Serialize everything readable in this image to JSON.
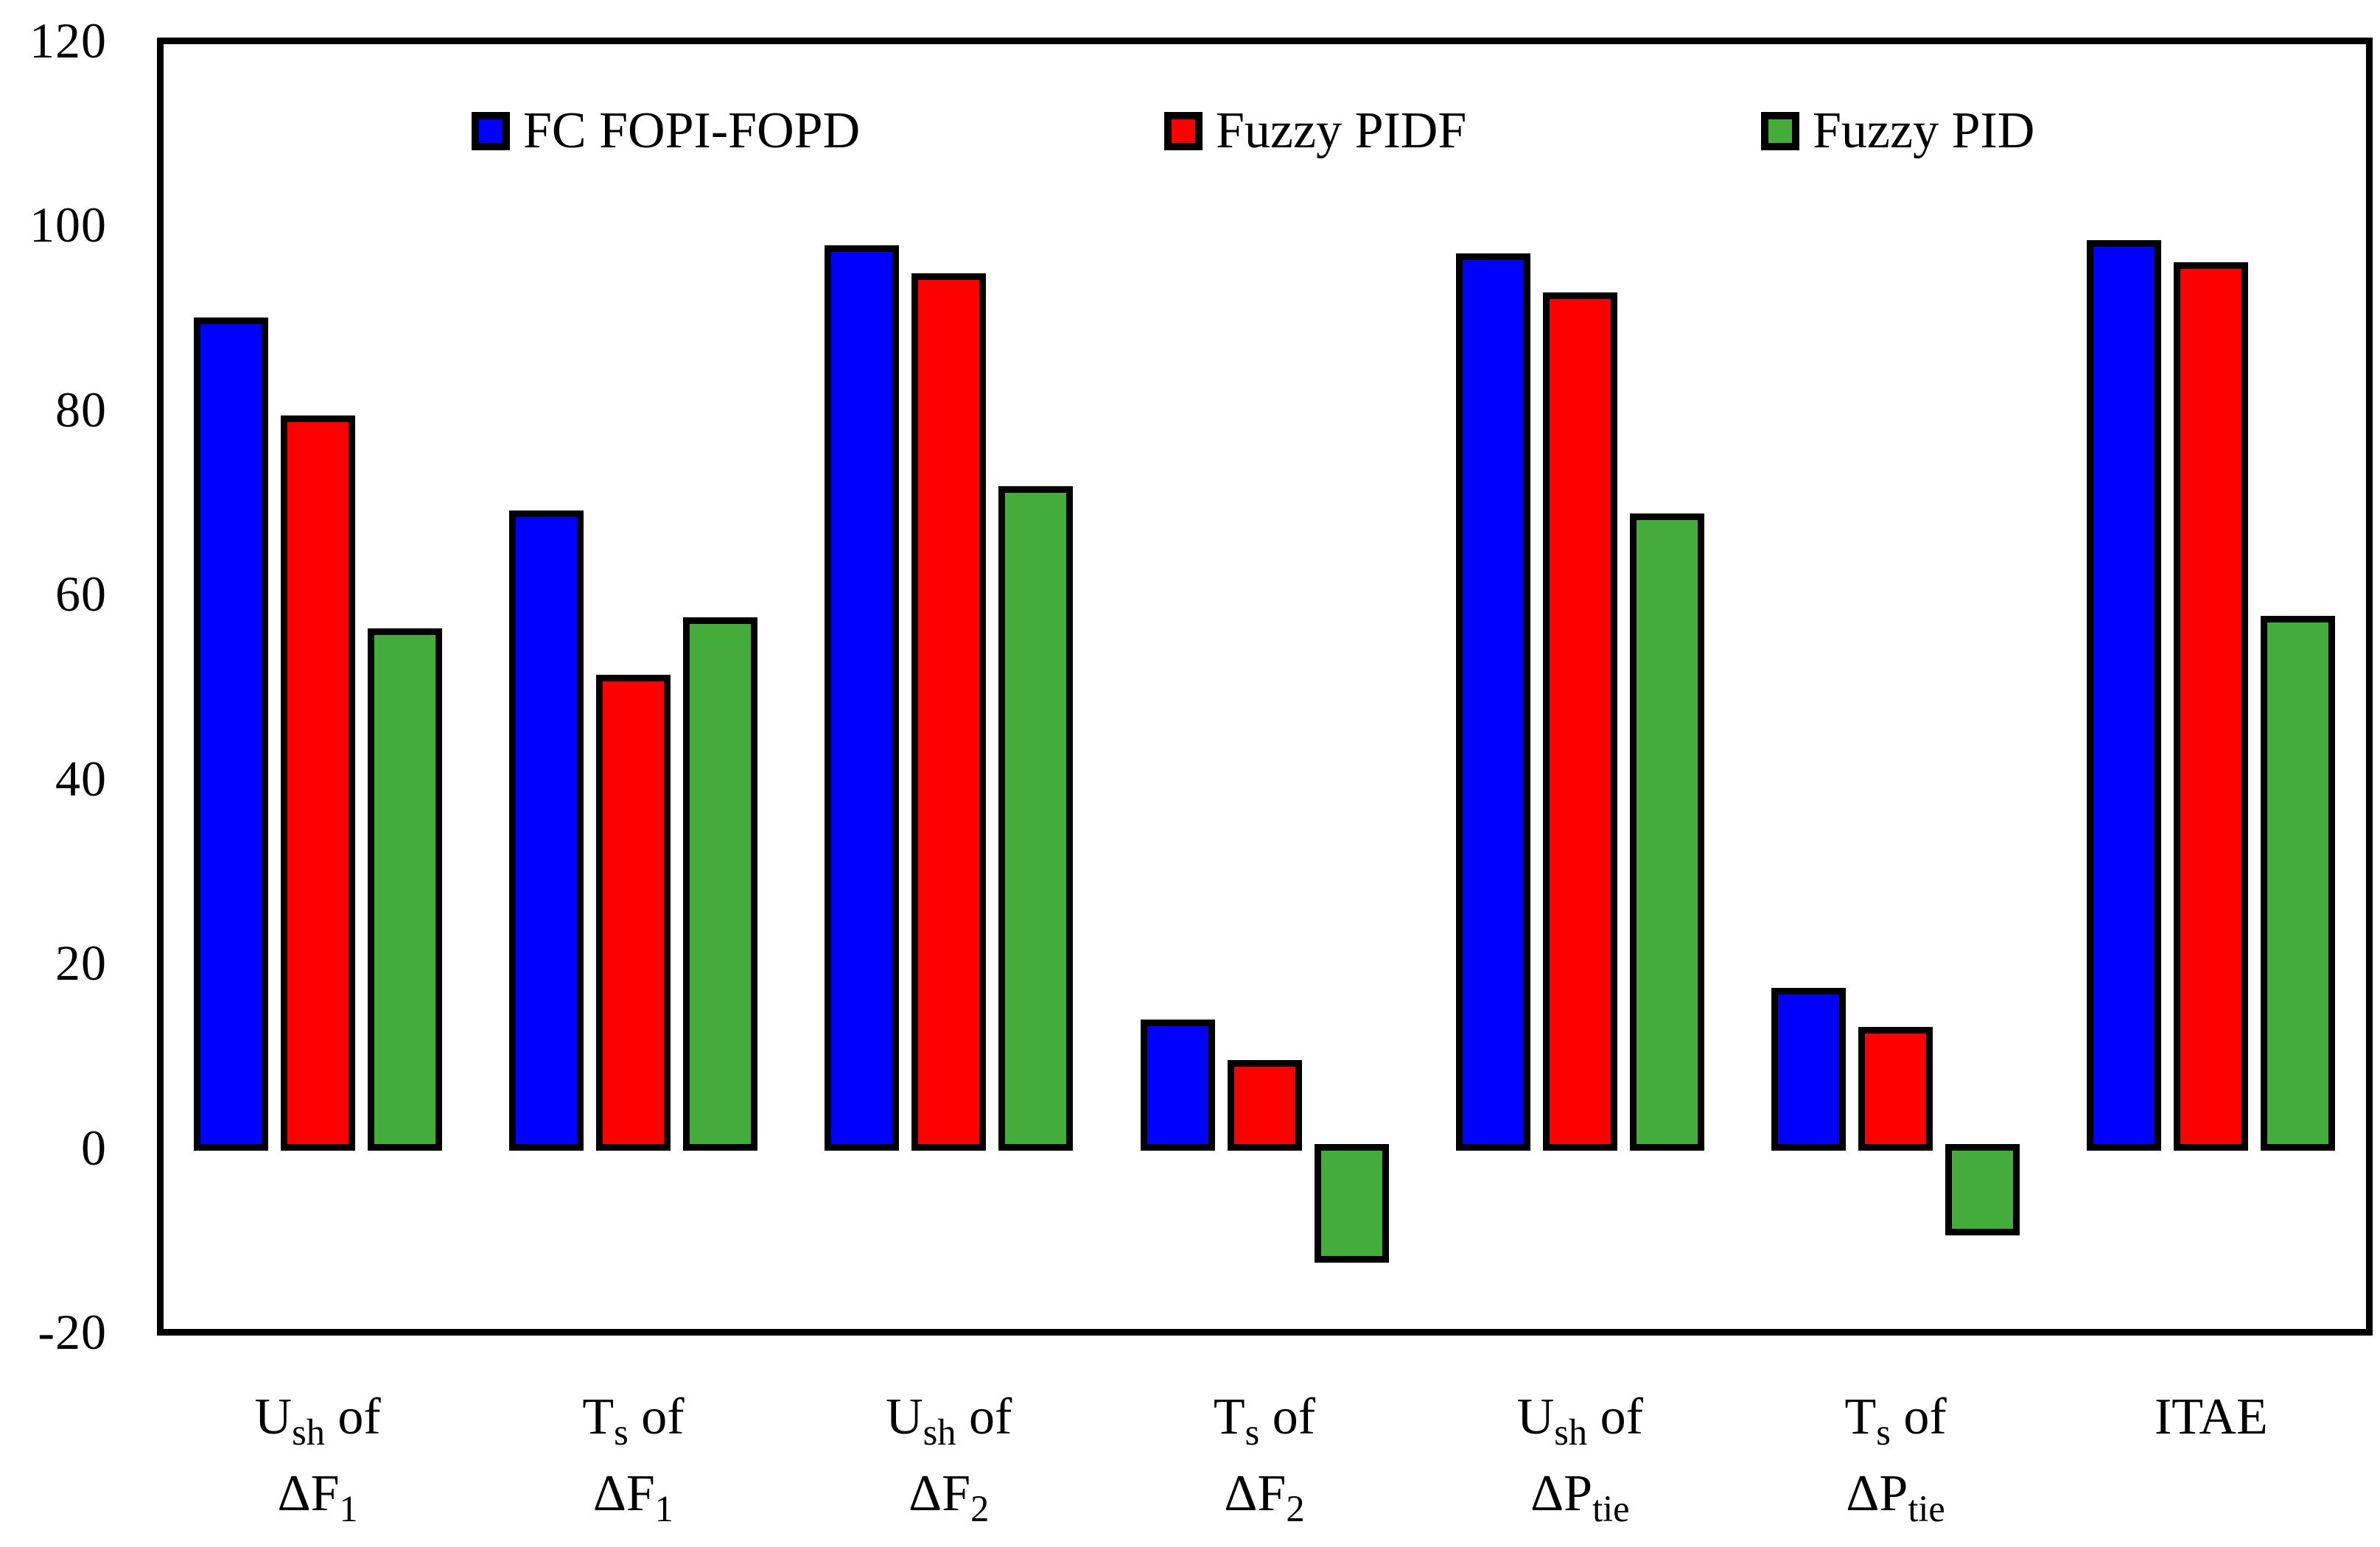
{
  "chart_data": {
    "type": "bar",
    "title": "",
    "xlabel": "",
    "ylabel": "",
    "background": "#ffffff",
    "frame_color": "#000000",
    "bar_border_color": "#000000",
    "grid": false,
    "legend_position": "top-inside-horizontal",
    "y_axis": {
      "min": -20,
      "max": 120,
      "tick_step": 20,
      "ticks": [
        120,
        100,
        80,
        60,
        40,
        20,
        0,
        -20
      ]
    },
    "categories": [
      {
        "plain": "Ush of ΔF1",
        "line1": [
          [
            "U",
            false
          ],
          [
            "sh",
            true
          ],
          [
            " of",
            false
          ]
        ],
        "line2": [
          [
            "ΔF",
            false
          ],
          [
            "1",
            true
          ]
        ]
      },
      {
        "plain": "Ts of ΔF1",
        "line1": [
          [
            "T",
            false
          ],
          [
            "s",
            true
          ],
          [
            " of",
            false
          ]
        ],
        "line2": [
          [
            "ΔF",
            false
          ],
          [
            "1",
            true
          ]
        ]
      },
      {
        "plain": "Ush of ΔF2",
        "line1": [
          [
            "U",
            false
          ],
          [
            "sh",
            true
          ],
          [
            " of",
            false
          ]
        ],
        "line2": [
          [
            "ΔF",
            false
          ],
          [
            "2",
            true
          ]
        ]
      },
      {
        "plain": "Ts of ΔF2",
        "line1": [
          [
            "T",
            false
          ],
          [
            "s",
            true
          ],
          [
            " of",
            false
          ]
        ],
        "line2": [
          [
            "ΔF",
            false
          ],
          [
            "2",
            true
          ]
        ]
      },
      {
        "plain": "Ush of ΔPtie",
        "line1": [
          [
            "U",
            false
          ],
          [
            "sh",
            true
          ],
          [
            " of",
            false
          ]
        ],
        "line2": [
          [
            "ΔP",
            false
          ],
          [
            "tie",
            true
          ]
        ]
      },
      {
        "plain": "Ts of ΔPtie",
        "line1": [
          [
            "T",
            false
          ],
          [
            "s",
            true
          ],
          [
            " of",
            false
          ]
        ],
        "line2": [
          [
            "ΔP",
            false
          ],
          [
            "tie",
            true
          ]
        ]
      },
      {
        "plain": "ITAE",
        "line1": [
          [
            "ITAE",
            false
          ]
        ],
        "line2": []
      }
    ],
    "series": [
      {
        "name": "FC FOPI-FOPD",
        "color": "#0000fe",
        "values": [
          89.6,
          68.7,
          97.4,
          13.5,
          96.6,
          16.9,
          98.0
        ]
      },
      {
        "name": "Fuzzy PIDF",
        "color": "#fd0000",
        "values": [
          79.0,
          50.9,
          94.4,
          9.1,
          92.3,
          12.7,
          95.6
        ]
      },
      {
        "name": "Fuzzy PID",
        "color": "#44ac3b",
        "values": [
          55.9,
          57.1,
          71.3,
          -12.1,
          68.4,
          -9.2,
          57.3
        ]
      }
    ]
  }
}
